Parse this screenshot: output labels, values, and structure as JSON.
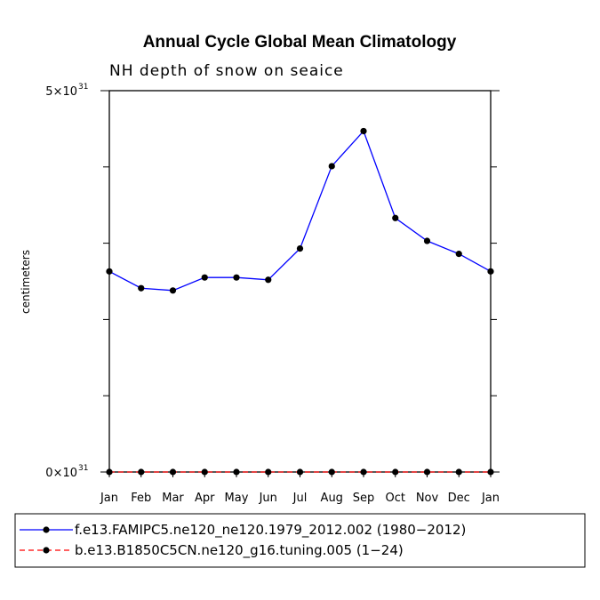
{
  "chart_data": {
    "type": "line",
    "title": "Annual Cycle Global Mean Climatology",
    "subtitle": "NH depth of snow on seaice",
    "xlabel": "",
    "ylabel": "centimeters",
    "categories": [
      "Jan",
      "Feb",
      "Mar",
      "Apr",
      "May",
      "Jun",
      "Jul",
      "Aug",
      "Sep",
      "Oct",
      "Nov",
      "Dec",
      "Jan"
    ],
    "ylim": [
      0,
      5
    ],
    "y_exponent_label": "×10",
    "y_exponent": "31",
    "y_tick_labels": [
      {
        "value": 5,
        "mantissa": "5"
      },
      {
        "value": 0,
        "mantissa": "0"
      }
    ],
    "y_minor_ticks": [
      1,
      2,
      3,
      4
    ],
    "series": [
      {
        "name": "f.e13.FAMIPC5.ne120_ne120.1979_2012.002 (1980−2012)",
        "color": "#0000ff",
        "dash": "solid",
        "values": [
          2.63,
          2.41,
          2.38,
          2.55,
          2.55,
          2.52,
          2.93,
          4.01,
          4.47,
          3.33,
          3.03,
          2.86,
          2.63
        ]
      },
      {
        "name": "b.e13.B1850C5CN.ne120_g16.tuning.005 (1−24)",
        "color": "#ff0000",
        "dash": "dashed",
        "values": [
          0,
          0,
          0,
          0,
          0,
          0,
          0,
          0,
          0,
          0,
          0,
          0,
          0
        ]
      }
    ],
    "legend_position": "bottom"
  }
}
